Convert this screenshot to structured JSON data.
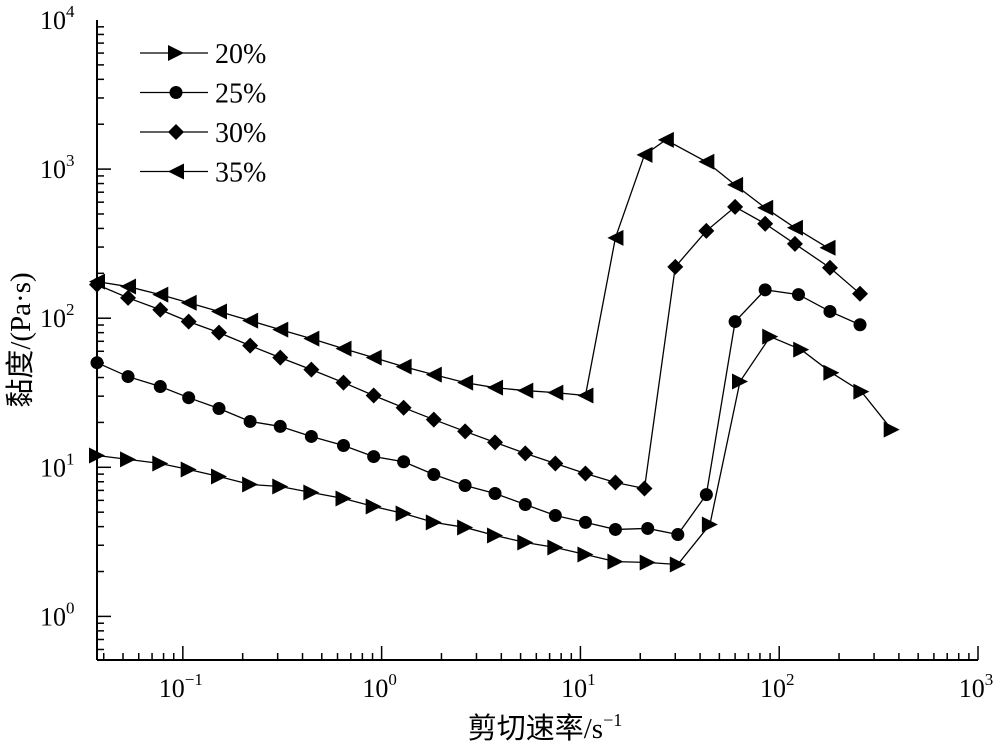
{
  "chart_data": {
    "type": "line",
    "title": "",
    "xlabel": "剪切速率/s",
    "xlabel_sup": "−1",
    "ylabel": "黏度/(Pa·s)",
    "xscale": "log",
    "yscale": "log",
    "xlim": [
      0.037,
      1000
    ],
    "ylim": [
      0.51,
      10000
    ],
    "grid": false,
    "legend_position": "top-left",
    "xticks": [
      {
        "base": "10",
        "exp": "−1",
        "value": 0.1
      },
      {
        "base": "10",
        "exp": "0",
        "value": 1
      },
      {
        "base": "10",
        "exp": "1",
        "value": 10
      },
      {
        "base": "10",
        "exp": "2",
        "value": 100
      },
      {
        "base": "10",
        "exp": "3",
        "value": 1000
      }
    ],
    "yticks": [
      {
        "base": "10",
        "exp": "0",
        "value": 1
      },
      {
        "base": "10",
        "exp": "1",
        "value": 10
      },
      {
        "base": "10",
        "exp": "2",
        "value": 100
      },
      {
        "base": "10",
        "exp": "3",
        "value": 1000
      },
      {
        "base": "10",
        "exp": "4",
        "value": 10000
      }
    ],
    "series": [
      {
        "name": "20%",
        "marker": "triangle-right",
        "x": [
          0.037,
          0.053,
          0.077,
          0.107,
          0.152,
          0.218,
          0.309,
          0.443,
          0.643,
          0.912,
          1.29,
          1.83,
          2.63,
          3.72,
          5.28,
          7.48,
          10.6,
          15.0,
          21.8,
          30.9,
          44.8,
          63.5,
          90.1,
          129,
          183,
          259,
          368
        ],
        "y": [
          12.0,
          11.3,
          10.6,
          9.66,
          8.67,
          7.67,
          7.43,
          6.78,
          6.18,
          5.46,
          4.9,
          4.27,
          3.95,
          3.49,
          3.13,
          2.9,
          2.6,
          2.33,
          2.3,
          2.23,
          4.13,
          37.6,
          75.2,
          61.5,
          43.1,
          32.2,
          17.9
        ]
      },
      {
        "name": "25%",
        "marker": "circle",
        "x": [
          0.037,
          0.053,
          0.077,
          0.107,
          0.152,
          0.218,
          0.309,
          0.443,
          0.643,
          0.912,
          1.29,
          1.83,
          2.63,
          3.72,
          5.28,
          7.48,
          10.6,
          15.0,
          21.8,
          30.9,
          43.0,
          60.0,
          85.0,
          125,
          180,
          255
        ],
        "y": [
          50.3,
          40.6,
          34.8,
          29.3,
          24.8,
          20.3,
          18.8,
          16.1,
          14.0,
          11.8,
          10.9,
          8.95,
          7.55,
          6.67,
          5.63,
          4.75,
          4.27,
          3.83,
          3.89,
          3.54,
          6.56,
          94.9,
          155,
          144,
          111,
          90.4
        ]
      },
      {
        "name": "30%",
        "marker": "diamond",
        "x": [
          0.037,
          0.053,
          0.077,
          0.107,
          0.152,
          0.218,
          0.309,
          0.443,
          0.643,
          0.912,
          1.29,
          1.83,
          2.63,
          3.72,
          5.28,
          7.48,
          10.6,
          15.0,
          21.0,
          30.0,
          43.0,
          60.0,
          85.0,
          120,
          180,
          255
        ],
        "y": [
          168,
          137,
          114,
          94.8,
          80.0,
          65.5,
          54.4,
          45.2,
          37.0,
          30.3,
          25.1,
          20.9,
          17.4,
          14.7,
          12.4,
          10.6,
          9.08,
          7.91,
          7.21,
          221,
          385,
          558,
          430,
          315,
          218,
          146
        ]
      },
      {
        "name": "35%",
        "marker": "triangle-left",
        "x": [
          0.037,
          0.053,
          0.077,
          0.107,
          0.152,
          0.218,
          0.309,
          0.443,
          0.643,
          0.912,
          1.29,
          1.83,
          2.63,
          3.72,
          5.28,
          7.48,
          10.6,
          15.0,
          21.0,
          26.9,
          43.0,
          60.0,
          85.0,
          120,
          175
        ],
        "y": [
          176,
          163,
          144,
          127,
          111,
          96.3,
          83.8,
          72.9,
          62.5,
          54.4,
          47.3,
          41.8,
          37.0,
          34.2,
          32.7,
          31.7,
          30.3,
          346,
          1245,
          1570,
          1120,
          784,
          550,
          404,
          297
        ]
      }
    ]
  }
}
